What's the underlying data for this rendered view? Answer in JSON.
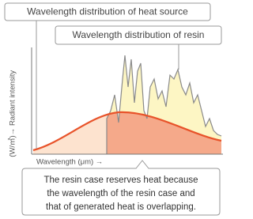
{
  "labels": {
    "heat_source": "Wavelength distribution of heat source",
    "resin": "Wavelength distribution of resin"
  },
  "axes": {
    "y_label": "→ Radiant intensity",
    "y_unit": "(W/㎡)",
    "x_label": "Wavelength (μm) →"
  },
  "callout": {
    "lines": [
      "The resin case reserves heat because",
      "the wavelength of the resin case and",
      "that of generated heat is overlapping."
    ]
  }
}
